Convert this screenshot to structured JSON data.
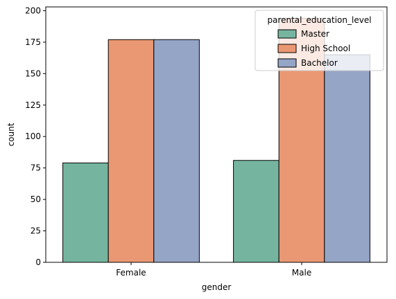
{
  "chart_data": {
    "type": "bar",
    "categories": [
      "Female",
      "Male"
    ],
    "series": [
      {
        "name": "Master",
        "values": [
          79,
          81
        ],
        "color": "#75b5a0"
      },
      {
        "name": "High School",
        "values": [
          177,
          194
        ],
        "color": "#ea9873"
      },
      {
        "name": "Bachelor",
        "values": [
          177,
          165
        ],
        "color": "#95a5c6"
      }
    ],
    "xlabel": "gender",
    "ylabel": "count",
    "ylim": [
      0,
      203
    ],
    "yticks": [
      0,
      25,
      50,
      75,
      100,
      125,
      150,
      175,
      200
    ],
    "grid": false,
    "legend": {
      "title": "parental_education_level",
      "placement": "top-right"
    }
  }
}
